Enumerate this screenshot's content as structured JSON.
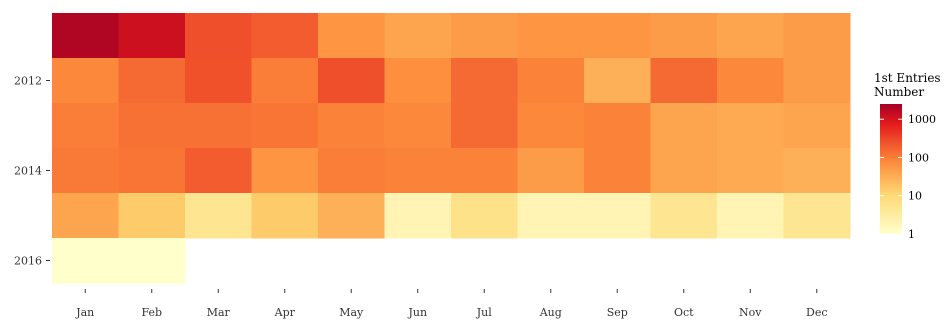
{
  "chart_data": {
    "type": "heatmap",
    "title": "",
    "xlabel": "",
    "ylabel": "",
    "x_categories": [
      "Jan",
      "Feb",
      "Mar",
      "Apr",
      "May",
      "Jun",
      "Jul",
      "Aug",
      "Sep",
      "Oct",
      "Nov",
      "Dec"
    ],
    "y_categories": [
      "2011",
      "2012",
      "2013",
      "2014",
      "2015",
      "2016"
    ],
    "y_tick_labels": [
      "2012",
      "2014",
      "2016"
    ],
    "y_tick_years": [
      2012,
      2014,
      2016
    ],
    "color_scale": {
      "type": "log10",
      "domain": [
        1,
        2500
      ],
      "colors": [
        "#ffffcc",
        "#fed976",
        "#fd8d3c",
        "#e31a1c",
        "#a50026"
      ],
      "stops": [
        0,
        0.3,
        0.55,
        0.85,
        1
      ]
    },
    "legend": {
      "title_line1": "1st Entries",
      "title_line2": "Number",
      "breaks": [
        1000,
        100,
        10,
        1
      ],
      "break_labels": [
        "1000",
        "100",
        "10",
        "1"
      ],
      "placement": "right"
    },
    "values": [
      [
        2000,
        1200,
        260,
        200,
        60,
        40,
        50,
        60,
        60,
        50,
        40,
        50
      ],
      [
        80,
        150,
        250,
        100,
        260,
        70,
        150,
        90,
        30,
        150,
        80,
        50
      ],
      [
        100,
        130,
        130,
        120,
        90,
        80,
        150,
        80,
        90,
        40,
        35,
        40
      ],
      [
        110,
        120,
        200,
        60,
        100,
        90,
        90,
        50,
        90,
        40,
        35,
        30
      ],
      [
        40,
        15,
        5,
        15,
        30,
        2,
        6,
        2,
        2,
        5,
        2,
        5
      ],
      [
        1,
        1,
        null,
        null,
        null,
        null,
        null,
        null,
        null,
        null,
        null,
        null
      ]
    ]
  }
}
